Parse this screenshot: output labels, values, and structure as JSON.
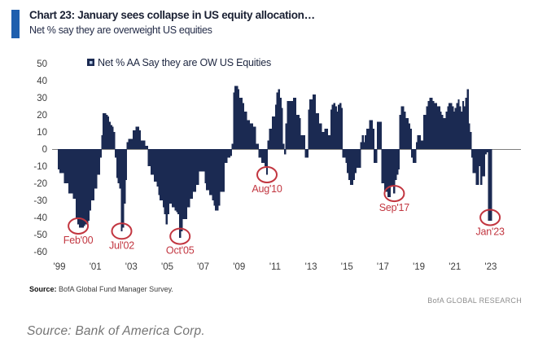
{
  "header": {
    "title": "Chart 23: January sees collapse in US equity allocation…",
    "subtitle": "Net % say they are overweight US equities",
    "accent_color": "#1F5FAE"
  },
  "chart_data": {
    "type": "bar",
    "legend": "Net % AA Say they are OW US Equities",
    "x_range": "Jan 1999 – Jan 2023, monthly",
    "x_tick_labels": [
      "'99",
      "'01",
      "'03",
      "'05",
      "'07",
      "'09",
      "'11",
      "'13",
      "'15",
      "'17",
      "'19",
      "'21",
      "'23"
    ],
    "y_ticks": [
      50,
      40,
      30,
      20,
      10,
      0,
      -10,
      -20,
      -30,
      -40,
      -50,
      -60
    ],
    "ylim": [
      -60,
      50
    ],
    "bar_color": "#1B2A52",
    "axis_color": "#7f7f7f",
    "annotation_color": "#C23640",
    "values_monthly": [
      -12,
      -14,
      -14,
      -14,
      -20,
      -20,
      -20,
      -26,
      -26,
      -26,
      -29,
      -29,
      -41,
      -44,
      -46,
      -46,
      -46,
      -45,
      -44,
      -44,
      -42,
      -36,
      -30,
      -30,
      -23,
      -23,
      -15,
      -15,
      -5,
      8,
      21,
      21,
      20,
      19,
      16,
      14,
      13,
      10,
      -5,
      -17,
      -20,
      -23,
      -48,
      -46,
      -32,
      -18,
      4,
      6,
      6,
      6,
      11,
      11,
      13,
      13,
      11,
      5,
      5,
      5,
      2,
      2,
      -10,
      -10,
      -15,
      -15,
      -19,
      -19,
      -22,
      -27,
      -30,
      -30,
      -34,
      -38,
      -44,
      -38,
      -32,
      -32,
      -34,
      -34,
      -36,
      -37,
      -38,
      -52,
      -48,
      -41,
      -41,
      -41,
      -34,
      -34,
      -29,
      -29,
      -25,
      -25,
      -21,
      -21,
      -13,
      -13,
      -13,
      -13,
      -20,
      -24,
      -24,
      -27,
      -27,
      -30,
      -33,
      -36,
      -36,
      -33,
      -25,
      -25,
      -25,
      -8,
      -8,
      -5,
      -5,
      -4,
      3,
      33,
      37,
      37,
      35,
      30,
      30,
      27,
      22,
      22,
      17,
      17,
      15,
      15,
      13,
      13,
      3,
      3,
      -5,
      -5,
      -8,
      -8,
      -10,
      -15,
      5,
      12,
      12,
      19,
      19,
      26,
      33,
      35,
      30,
      24,
      3,
      -3,
      15,
      28,
      28,
      28,
      28,
      30,
      30,
      20,
      20,
      18,
      8,
      8,
      8,
      -5,
      -5,
      23,
      29,
      29,
      32,
      32,
      21,
      21,
      15,
      15,
      10,
      10,
      12,
      12,
      8,
      8,
      23,
      26,
      27,
      25,
      22,
      26,
      27,
      24,
      -5,
      -5,
      -8,
      -14,
      -18,
      -21,
      -21,
      -18,
      -14,
      -11,
      -11,
      -11,
      4,
      8,
      4,
      8,
      12,
      12,
      17,
      17,
      12,
      -8,
      -8,
      16,
      16,
      16,
      -20,
      -20,
      -25,
      -25,
      -28,
      -28,
      -22,
      -22,
      -26,
      -18,
      -15,
      -12,
      20,
      25,
      25,
      22,
      18,
      18,
      15,
      12,
      -5,
      -8,
      -8,
      4,
      8,
      8,
      5,
      5,
      20,
      20,
      25,
      28,
      30,
      30,
      28,
      27,
      27,
      25,
      25,
      22,
      20,
      18,
      18,
      22,
      25,
      27,
      27,
      25,
      22,
      24,
      27,
      29,
      25,
      22,
      28,
      25,
      30,
      35,
      15,
      10,
      -5,
      -14,
      -14,
      -21,
      -21,
      -10,
      -21,
      -16,
      -16,
      -3,
      -2,
      -2,
      -42
    ],
    "annotations": [
      {
        "label": "Feb'00",
        "month_index": 13,
        "value": -45
      },
      {
        "label": "Jul'02",
        "month_index": 42,
        "value": -48
      },
      {
        "label": "Oct'05",
        "month_index": 81,
        "value": -51
      },
      {
        "label": "Aug'10",
        "month_index": 139,
        "value": -15
      },
      {
        "label": "Sep'17",
        "month_index": 224,
        "value": -26
      },
      {
        "label": "Jan'23",
        "month_index": 288,
        "value": -40
      }
    ]
  },
  "footer": {
    "source_label": "Source:",
    "source_text": " BofA Global Fund Manager Survey.",
    "brand": "BofA GLOBAL RESEARCH"
  },
  "caption": "Source: Bank of America Corp."
}
